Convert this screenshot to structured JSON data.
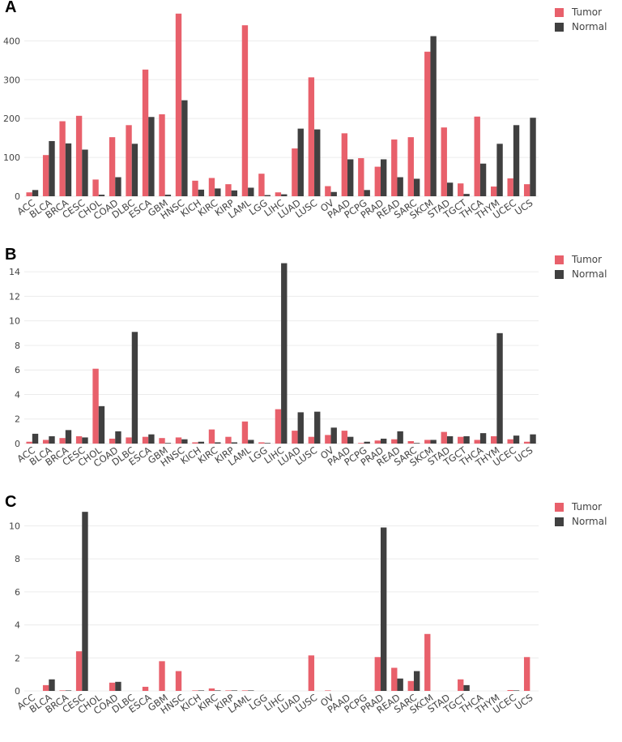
{
  "colors": {
    "tumor": "#e8606b",
    "normal": "#404040",
    "grid": "#ececec",
    "text": "#444444"
  },
  "chart_data": [
    {
      "panel": "A",
      "type": "bar",
      "categories": [
        "ACC",
        "BLCA",
        "BRCA",
        "CESC",
        "CHOL",
        "COAD",
        "DLBC",
        "ESCA",
        "GBM",
        "HNSC",
        "KICH",
        "KIRC",
        "KIRP",
        "LAML",
        "LGG",
        "LIHC",
        "LUAD",
        "LUSC",
        "OV",
        "PAAD",
        "PCPG",
        "PRAD",
        "READ",
        "SARC",
        "SKCM",
        "STAD",
        "TGCT",
        "THCA",
        "THYM",
        "UCEC",
        "UCS"
      ],
      "series": [
        {
          "name": "Tumor",
          "values": [
            10,
            106,
            193,
            207,
            43,
            152,
            183,
            326,
            211,
            470,
            40,
            47,
            31,
            440,
            58,
            10,
            123,
            306,
            26,
            162,
            98,
            76,
            146,
            152,
            372,
            177,
            33,
            205,
            25,
            46,
            31
          ]
        },
        {
          "name": "Normal",
          "values": [
            16,
            142,
            136,
            120,
            4,
            49,
            135,
            204,
            4,
            247,
            17,
            20,
            15,
            22,
            3,
            5,
            174,
            172,
            11,
            95,
            16,
            95,
            49,
            45,
            412,
            35,
            6,
            84,
            135,
            183,
            202
          ]
        }
      ],
      "yticks": [
        0,
        100,
        200,
        300,
        400
      ],
      "ylim": [
        0,
        480
      ],
      "legend": [
        "Tumor",
        "Normal"
      ]
    },
    {
      "panel": "B",
      "type": "bar",
      "categories": [
        "ACC",
        "BLCA",
        "BRCA",
        "CESC",
        "CHOL",
        "COAD",
        "DLBC",
        "ESCA",
        "GBM",
        "HNSC",
        "KICH",
        "KIRC",
        "KIRP",
        "LAML",
        "LGG",
        "LIHC",
        "LUAD",
        "LUSC",
        "OV",
        "PAAD",
        "PCPG",
        "PRAD",
        "READ",
        "SARC",
        "SKCM",
        "STAD",
        "TGCT",
        "THCA",
        "THYM",
        "UCEC",
        "UCS"
      ],
      "series": [
        {
          "name": "Tumor",
          "values": [
            0.15,
            0.3,
            0.45,
            0.6,
            6.1,
            0.4,
            0.5,
            0.55,
            0.45,
            0.5,
            0.1,
            1.15,
            0.55,
            1.8,
            0.1,
            2.8,
            1.05,
            0.55,
            0.7,
            1.05,
            0.05,
            0.25,
            0.35,
            0.2,
            0.3,
            0.95,
            0.55,
            0.3,
            0.6,
            0.35,
            0.15
          ]
        },
        {
          "name": "Normal",
          "values": [
            0.8,
            0.6,
            1.1,
            0.5,
            3.05,
            1.0,
            9.1,
            0.75,
            0.05,
            0.35,
            0.15,
            0.1,
            0.1,
            0.3,
            0.05,
            14.7,
            2.55,
            2.6,
            1.3,
            0.55,
            0.15,
            0.4,
            1.0,
            0.05,
            0.3,
            0.6,
            0.6,
            0.85,
            9.0,
            0.65,
            0.75
          ]
        }
      ],
      "yticks": [
        0,
        2,
        4,
        6,
        8,
        10,
        12,
        14
      ],
      "ylim": [
        0,
        15.2
      ],
      "legend": [
        "Tumor",
        "Normal"
      ]
    },
    {
      "panel": "C",
      "type": "bar",
      "categories": [
        "ACC",
        "BLCA",
        "BRCA",
        "CESC",
        "CHOL",
        "COAD",
        "DLBC",
        "ESCA",
        "GBM",
        "HNSC",
        "KICH",
        "KIRC",
        "KIRP",
        "LAML",
        "LGG",
        "LIHC",
        "LUAD",
        "LUSC",
        "OV",
        "PAAD",
        "PCPG",
        "PRAD",
        "READ",
        "SARC",
        "SKCM",
        "STAD",
        "TGCT",
        "THCA",
        "THYM",
        "UCEC",
        "UCS"
      ],
      "series": [
        {
          "name": "Tumor",
          "values": [
            0,
            0.35,
            0.03,
            2.4,
            0,
            0.5,
            0,
            0.25,
            1.8,
            1.2,
            0.03,
            0.15,
            0.03,
            0.03,
            0,
            0,
            0,
            2.15,
            0.03,
            0,
            0,
            2.05,
            1.4,
            0.6,
            3.45,
            0,
            0.7,
            0,
            0,
            0.05,
            2.05
          ]
        },
        {
          "name": "Normal",
          "values": [
            0,
            0.7,
            0.03,
            10.85,
            0,
            0.55,
            0,
            0,
            0,
            0,
            0.03,
            0.03,
            0.03,
            0.03,
            0,
            0,
            0,
            0,
            0,
            0,
            0,
            9.9,
            0.75,
            1.2,
            0,
            0,
            0.35,
            0,
            0,
            0.03,
            0
          ]
        }
      ],
      "yticks": [
        0,
        2,
        4,
        6,
        8,
        10
      ],
      "ylim": [
        0,
        11.3
      ],
      "legend": [
        "Tumor",
        "Normal"
      ]
    }
  ]
}
